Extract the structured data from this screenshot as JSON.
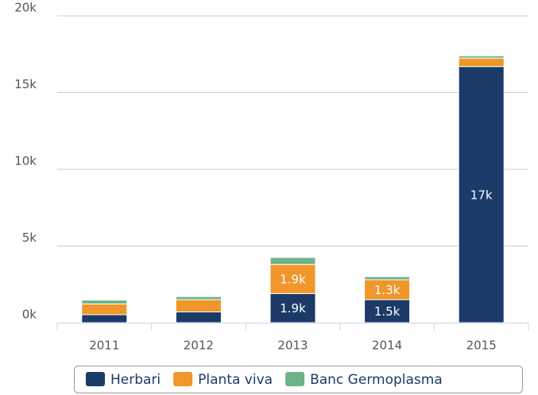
{
  "chart_data": {
    "type": "bar",
    "stacked": true,
    "categories": [
      "2011",
      "2012",
      "2013",
      "2014",
      "2015"
    ],
    "series": [
      {
        "name": "Herbari",
        "color": "#1b3a67",
        "values": [
          520,
          700,
          1900,
          1500,
          16700
        ],
        "value_labels": [
          null,
          null,
          "1.9k",
          "1.5k",
          "17k"
        ]
      },
      {
        "name": "Planta viva",
        "color": "#f0962a",
        "values": [
          700,
          800,
          1900,
          1300,
          550
        ],
        "value_labels": [
          null,
          null,
          "1.9k",
          "1.3k",
          null
        ]
      },
      {
        "name": "Banc Germoplasma",
        "color": "#6db38a",
        "values": [
          250,
          200,
          450,
          200,
          150
        ]
      }
    ],
    "ylim": [
      0,
      20000
    ],
    "yticks": [
      {
        "value": 0,
        "label": "0k"
      },
      {
        "value": 5000,
        "label": "5k"
      },
      {
        "value": 10000,
        "label": "10k"
      },
      {
        "value": 15000,
        "label": "15k"
      },
      {
        "value": 20000,
        "label": "20k"
      }
    ],
    "grid": true,
    "legend": "bottom"
  }
}
